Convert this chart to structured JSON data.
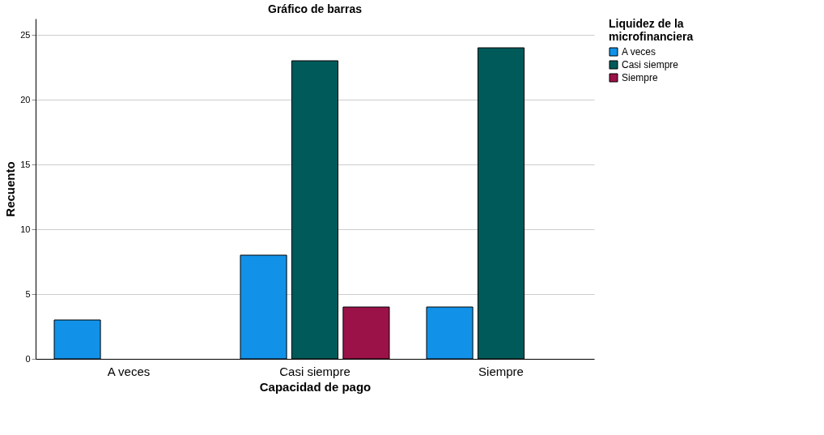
{
  "chart_data": {
    "type": "bar",
    "title": "Gráfico de barras",
    "xlabel": "Capacidad de pago",
    "ylabel": "Recuento",
    "legend_title": "Liquidez de la microfinanciera",
    "categories": [
      "A veces",
      "Casi siempre",
      "Siempre"
    ],
    "series": [
      {
        "name": "A veces",
        "color": "#1192e8",
        "values": [
          3,
          8,
          4
        ]
      },
      {
        "name": "Casi siempre",
        "color": "#005a5a",
        "values": [
          null,
          23,
          24
        ]
      },
      {
        "name": "Siempre",
        "color": "#9b1248",
        "values": [
          null,
          4,
          null
        ]
      }
    ],
    "ylim": [
      0,
      26.25
    ],
    "yticks": [
      0,
      5,
      10,
      15,
      20,
      25
    ],
    "grid": "y",
    "legend": "top right"
  }
}
